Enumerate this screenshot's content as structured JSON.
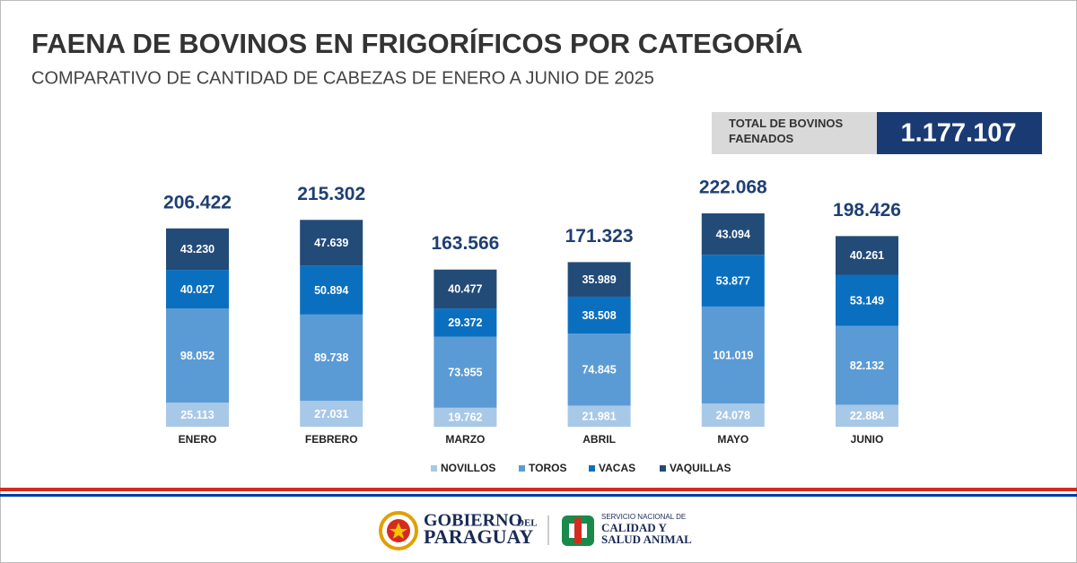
{
  "chart_data": {
    "type": "stacked_bar",
    "title": "FAENA DE BOVINOS EN FRIGORÍFICOS POR CATEGORÍA",
    "subtitle": "COMPARATIVO DE CANTIDAD DE CABEZAS DE ENERO A JUNIO DE 2025",
    "summary": {
      "label": "TOTAL DE BOVINOS FAENADOS",
      "value": 1177107,
      "value_label": "1.177.107"
    },
    "categories": [
      "ENERO",
      "FEBRERO",
      "MARZO",
      "ABRIL",
      "MAYO",
      "JUNIO"
    ],
    "series": [
      {
        "name": "NOVILLOS",
        "color": "#a8c8e8",
        "values": [
          25113,
          27031,
          19762,
          21981,
          24078,
          22884
        ],
        "value_labels": [
          "25.113",
          "27.031",
          "19.762",
          "21.981",
          "24.078",
          "22.884"
        ]
      },
      {
        "name": "TOROS",
        "color": "#5b9bd5",
        "values": [
          98052,
          89738,
          73955,
          74845,
          101019,
          82132
        ],
        "value_labels": [
          "98.052",
          "89.738",
          "73.955",
          "74.845",
          "101.019",
          "82.132"
        ]
      },
      {
        "name": "VACAS",
        "color": "#0b6fc0",
        "values": [
          40027,
          50894,
          29372,
          38508,
          53877,
          53149
        ],
        "value_labels": [
          "40.027",
          "50.894",
          "29.372",
          "38.508",
          "53.877",
          "53.149"
        ]
      },
      {
        "name": "VAQUILLAS",
        "color": "#234b78",
        "values": [
          43230,
          47639,
          40477,
          35989,
          43094,
          40261
        ],
        "value_labels": [
          "43.230",
          "47.639",
          "40.477",
          "35.989",
          "43.094",
          "40.261"
        ]
      }
    ],
    "totals": {
      "values": [
        206422,
        215302,
        163566,
        171323,
        222068,
        198426
      ],
      "value_labels": [
        "206.422",
        "215.302",
        "163.566",
        "171.323",
        "222.068",
        "198.426"
      ]
    }
  },
  "footer": {
    "gov_line1": "GOBIERNO",
    "gov_line1b": "DEL",
    "gov_line2": "PARAGUAY",
    "senacsa_line1": "SERVICIO NACIONAL DE",
    "senacsa_line2": "CALIDAD Y",
    "senacsa_line3": "SALUD ANIMAL"
  }
}
